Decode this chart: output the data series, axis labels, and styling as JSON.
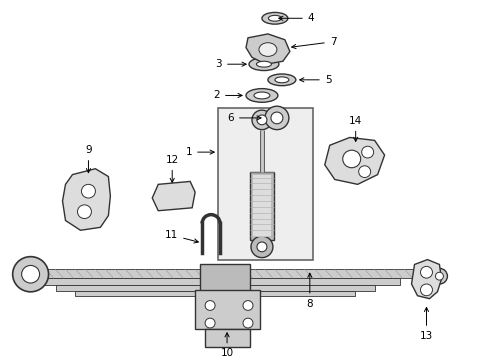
{
  "background_color": "#ffffff",
  "line_color": "#333333",
  "font_size": 7.5,
  "fig_w": 4.89,
  "fig_h": 3.6,
  "dpi": 100
}
